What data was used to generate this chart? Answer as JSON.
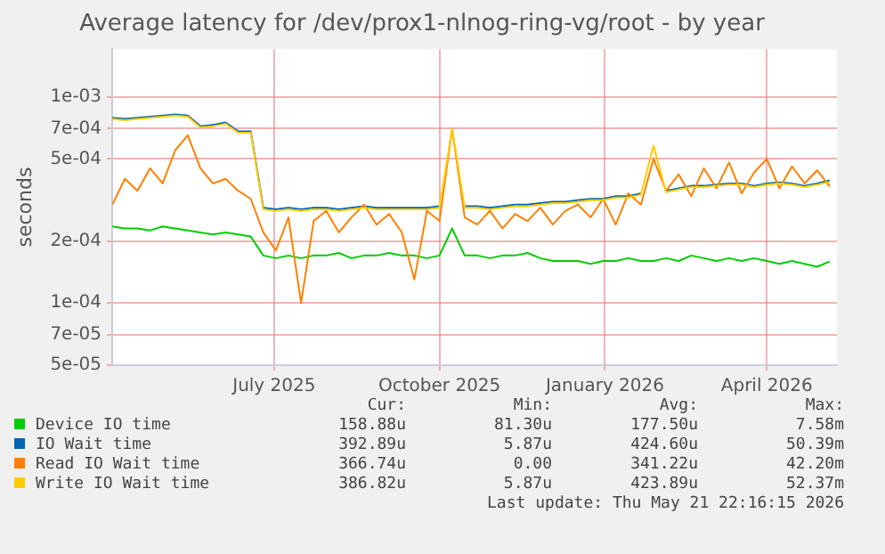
{
  "chart_data": {
    "type": "line",
    "title": "Average latency for /dev/prox1-nlnog-ring-vg/root - by year",
    "ylabel": "seconds",
    "log": "y",
    "grid": true,
    "legend": "bottom",
    "marker": "none",
    "line_style": "solid",
    "ylim": [
      5e-05,
      0.0017
    ],
    "yticks": [
      {
        "value": 5e-05,
        "label": "5e-05"
      },
      {
        "value": 7e-05,
        "label": "7e-05"
      },
      {
        "value": 0.0001,
        "label": "1e-04"
      },
      {
        "value": 0.0002,
        "label": "2e-04"
      },
      {
        "value": 0.0005,
        "label": "5e-04"
      },
      {
        "value": 0.0007,
        "label": "7e-04"
      },
      {
        "value": 0.001,
        "label": "1e-03"
      }
    ],
    "xlim": [
      "2025-04-17",
      "2026-05-25"
    ],
    "xticks": [
      {
        "value": "2025-07-16",
        "label": "July 2025"
      },
      {
        "value": "2025-10-16",
        "label": "October 2025"
      },
      {
        "value": "2026-01-16",
        "label": "January 2026"
      },
      {
        "value": "2026-04-16",
        "label": "April 2026"
      }
    ],
    "x": [
      "2025-04-17",
      "2025-04-24",
      "2025-05-01",
      "2025-05-08",
      "2025-05-15",
      "2025-05-22",
      "2025-05-29",
      "2025-06-05",
      "2025-06-12",
      "2025-06-19",
      "2025-06-26",
      "2025-07-03",
      "2025-07-10",
      "2025-07-17",
      "2025-07-24",
      "2025-07-31",
      "2025-08-07",
      "2025-08-14",
      "2025-08-21",
      "2025-08-28",
      "2025-09-04",
      "2025-09-11",
      "2025-09-18",
      "2025-09-25",
      "2025-10-02",
      "2025-10-09",
      "2025-10-16",
      "2025-10-23",
      "2025-10-30",
      "2025-11-06",
      "2025-11-13",
      "2025-11-20",
      "2025-11-27",
      "2025-12-04",
      "2025-12-11",
      "2025-12-18",
      "2025-12-25",
      "2026-01-01",
      "2026-01-08",
      "2026-01-15",
      "2026-01-22",
      "2026-01-29",
      "2026-02-05",
      "2026-02-12",
      "2026-02-19",
      "2026-02-26",
      "2026-03-05",
      "2026-03-12",
      "2026-03-19",
      "2026-03-26",
      "2026-04-02",
      "2026-04-09",
      "2026-04-16",
      "2026-04-23",
      "2026-04-30",
      "2026-05-07",
      "2026-05-14",
      "2026-05-21"
    ],
    "series": [
      {
        "name": "Device IO time",
        "color": "#00cc00",
        "values": [
          0.000235,
          0.00023,
          0.00023,
          0.000225,
          0.000235,
          0.00023,
          0.000225,
          0.00022,
          0.000215,
          0.00022,
          0.000215,
          0.00021,
          0.00017,
          0.000165,
          0.00017,
          0.000165,
          0.00017,
          0.00017,
          0.000175,
          0.000165,
          0.00017,
          0.00017,
          0.000175,
          0.00017,
          0.00017,
          0.000165,
          0.00017,
          0.00023,
          0.00017,
          0.00017,
          0.000165,
          0.00017,
          0.00017,
          0.000175,
          0.000165,
          0.00016,
          0.00016,
          0.00016,
          0.000155,
          0.00016,
          0.00016,
          0.000165,
          0.00016,
          0.00016,
          0.000165,
          0.00016,
          0.00017,
          0.000165,
          0.00016,
          0.000165,
          0.00016,
          0.000165,
          0.00016,
          0.000155,
          0.00016,
          0.000155,
          0.00015,
          0.000159
        ]
      },
      {
        "name": "IO Wait time",
        "color": "#0066b3",
        "values": [
          0.00079,
          0.00078,
          0.00079,
          0.0008,
          0.00081,
          0.00082,
          0.00081,
          0.00072,
          0.00073,
          0.00075,
          0.00068,
          0.00068,
          0.00029,
          0.000285,
          0.00029,
          0.000285,
          0.00029,
          0.00029,
          0.000285,
          0.00029,
          0.000295,
          0.00029,
          0.00029,
          0.00029,
          0.00029,
          0.00029,
          0.000295,
          null,
          0.000295,
          0.000295,
          0.00029,
          0.000295,
          0.0003,
          0.0003,
          0.000305,
          0.00031,
          0.00031,
          0.000315,
          0.00032,
          0.00032,
          0.00033,
          0.00033,
          0.00034,
          null,
          0.00035,
          0.00036,
          0.00037,
          0.00037,
          0.000375,
          0.00038,
          0.00038,
          0.00037,
          0.00038,
          0.000385,
          0.00038,
          0.00037,
          0.00038,
          0.000393
        ]
      },
      {
        "name": "Read IO Wait time",
        "color": "#ff8000",
        "values": [
          0.0003,
          0.0004,
          0.00035,
          0.00045,
          0.00038,
          0.00055,
          0.00065,
          0.00045,
          0.00038,
          0.0004,
          0.00035,
          0.00032,
          0.00022,
          0.00018,
          0.00026,
          0.0001,
          0.00025,
          0.00028,
          0.00022,
          0.00026,
          0.0003,
          0.00024,
          0.00027,
          0.00022,
          0.00013,
          0.00028,
          0.00025,
          0.0007,
          0.00026,
          0.00024,
          0.00028,
          0.00023,
          0.00027,
          0.00025,
          0.00029,
          0.00024,
          0.00028,
          0.0003,
          0.00026,
          0.00032,
          0.00024,
          0.00034,
          0.0003,
          0.0005,
          0.00035,
          0.00042,
          0.00033,
          0.00045,
          0.00036,
          0.00048,
          0.00034,
          0.00043,
          0.0005,
          0.00036,
          0.00046,
          0.00038,
          0.00044,
          0.000367
        ]
      },
      {
        "name": "Write IO Wait time",
        "color": "#ffcc00",
        "values": [
          0.00078,
          0.00077,
          0.00078,
          0.00079,
          0.0008,
          0.00081,
          0.0008,
          0.00071,
          0.00072,
          0.00074,
          0.00067,
          0.00067,
          0.000285,
          0.00028,
          0.000285,
          0.00028,
          0.000285,
          0.000285,
          0.00028,
          0.000285,
          0.00029,
          0.000285,
          0.000285,
          0.000285,
          0.000285,
          0.000285,
          0.00029,
          0.0007,
          0.00029,
          0.00029,
          0.000285,
          0.00029,
          0.000295,
          0.000295,
          0.0003,
          0.000305,
          0.000305,
          0.00031,
          0.000315,
          0.000315,
          0.000325,
          0.000325,
          0.000335,
          0.00058,
          0.000345,
          0.000355,
          0.000365,
          0.000365,
          0.00037,
          0.000375,
          0.000375,
          0.000365,
          0.000375,
          0.00038,
          0.000375,
          0.000365,
          0.000375,
          0.000387
        ]
      }
    ],
    "annotations": [
      "Cur:",
      "Min:",
      "Avg:",
      "Max:",
      "158.88u",
      "81.30u",
      "177.50u",
      "7.58m",
      "392.89u",
      "5.87u",
      "424.60u",
      "50.39m",
      "366.74u",
      "0.00",
      "341.22u",
      "42.20m",
      "386.82u",
      "5.87u",
      "423.89u",
      "52.37m",
      "Last update: Thu May 21 22:16:15 2026"
    ]
  }
}
